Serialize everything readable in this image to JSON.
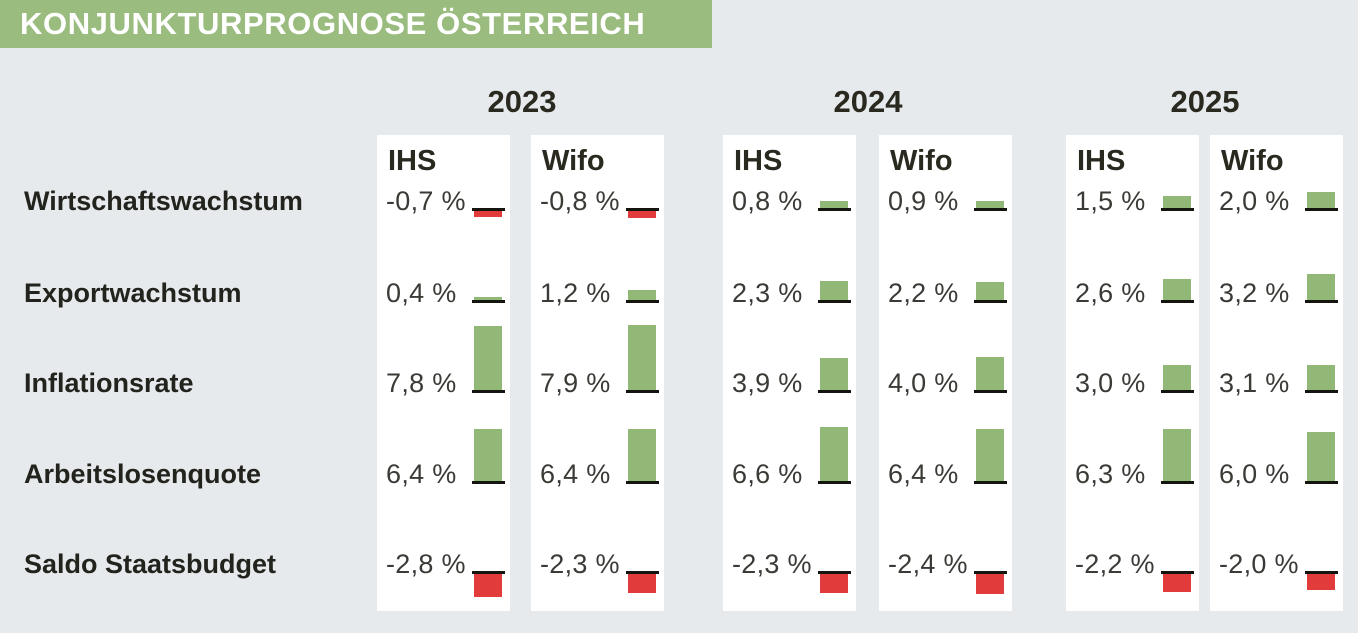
{
  "title": {
    "text": "KONJUNKTURPROGNOSE ÖSTERREICH"
  },
  "colors": {
    "title_bg": "#9abc7e",
    "title_text": "#ffffff",
    "page_bg": "#e6eaec",
    "panel_bg": "#ffffff",
    "positive_bar": "#92b878",
    "negative_bar": "#e23b3b",
    "baseline": "#15150f",
    "heading_text": "#29291f",
    "value_text": "#3a3a36"
  },
  "chart_data": {
    "type": "bar",
    "title": "KONJUNKTURPROGNOSE ÖSTERREICH",
    "unit": "%",
    "value_format": "German decimal comma with space before %, e.g. -0,7 %",
    "orientation": "vertical bars anchored on baseline; positive up (green), negative down (red)",
    "rows": [
      "Wirtschaftswachstum",
      "Exportwachstum",
      "Inflationsrate",
      "Arbeitslosenquote",
      "Saldo Staatsbudget"
    ],
    "years": [
      "2023",
      "2024",
      "2025"
    ],
    "institutes": [
      "IHS",
      "Wifo"
    ],
    "series": [
      {
        "year": "2023",
        "institute": "IHS",
        "values": [
          -0.7,
          0.4,
          7.8,
          6.4,
          -2.8
        ],
        "labels": [
          "-0,7 %",
          "0,4 %",
          "7,8 %",
          "6,4 %",
          "-2,8 %"
        ]
      },
      {
        "year": "2023",
        "institute": "Wifo",
        "values": [
          -0.8,
          1.2,
          7.9,
          6.4,
          -2.3
        ],
        "labels": [
          "-0,8 %",
          "1,2 %",
          "7,9 %",
          "6,4 %",
          "-2,3 %"
        ]
      },
      {
        "year": "2024",
        "institute": "IHS",
        "values": [
          0.8,
          2.3,
          3.9,
          6.6,
          -2.3
        ],
        "labels": [
          "0,8 %",
          "2,3 %",
          "3,9 %",
          "6,6 %",
          "-2,3 %"
        ]
      },
      {
        "year": "2024",
        "institute": "Wifo",
        "values": [
          0.9,
          2.2,
          4.0,
          6.4,
          -2.4
        ],
        "labels": [
          "0,9 %",
          "2,2 %",
          "4,0 %",
          "6,4 %",
          "-2,4 %"
        ]
      },
      {
        "year": "2025",
        "institute": "IHS",
        "values": [
          1.5,
          2.6,
          3.0,
          6.3,
          -2.2
        ],
        "labels": [
          "1,5 %",
          "2,6 %",
          "3,0 %",
          "6,3 %",
          "-2,2 %"
        ]
      },
      {
        "year": "2025",
        "institute": "Wifo",
        "values": [
          2.0,
          3.2,
          3.1,
          6.0,
          -2.0
        ],
        "labels": [
          "2,0 %",
          "3,2 %",
          "3,1 %",
          "6,0 %",
          "-2,0 %"
        ]
      }
    ]
  }
}
